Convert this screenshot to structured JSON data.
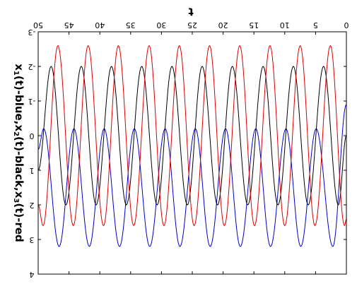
{
  "chart_data": {
    "type": "line",
    "orientation_note": "",
    "xlabel": "t",
    "ylabel": {
      "prefix": "x",
      "s1": "1",
      "mid1": "(t)-blue,x",
      "s2": "2",
      "mid2": "(t)-black,x",
      "s3": "3",
      "suffix": "(t)-red"
    },
    "xlim": [
      0,
      50
    ],
    "ylim": [
      -3,
      4
    ],
    "x_ticks": [
      0,
      5,
      10,
      15,
      20,
      25,
      30,
      35,
      40,
      45,
      50
    ],
    "x_tick_labels": [
      "0",
      "5",
      "10",
      "15",
      "20",
      "25",
      "30",
      "35",
      "40",
      "45",
      "50"
    ],
    "y_ticks": [
      -3,
      -2,
      -1,
      0,
      1,
      2,
      3,
      4
    ],
    "y_tick_labels": [
      "-3",
      "-2",
      "-1",
      "0",
      "1",
      "2",
      "3",
      "4"
    ],
    "grid": false,
    "legend": "none",
    "series": [
      {
        "color": "#0000cc",
        "x": [
          0,
          2.2,
          4.9,
          7.4,
          9.8,
          12.3,
          14.7,
          17.2,
          19.6,
          22.1,
          24.5,
          27.0,
          29.4,
          31.9,
          34.4,
          36.8,
          39.3,
          41.7,
          44.2,
          46.6,
          49.1,
          50
        ],
        "y": [
          -0.9,
          3.2,
          -0.2,
          3.2,
          -0.2,
          3.2,
          -0.2,
          3.2,
          -0.2,
          3.2,
          -0.2,
          3.2,
          -0.2,
          3.2,
          -0.2,
          3.2,
          -0.2,
          3.2,
          -0.2,
          3.2,
          -0.2,
          0.4
        ]
      },
      {
        "color": "#000000",
        "x": [
          0,
          1.3,
          3.7,
          6.2,
          8.6,
          11.1,
          13.5,
          16.0,
          18.5,
          20.9,
          23.4,
          25.8,
          28.3,
          30.7,
          33.2,
          35.7,
          38.1,
          40.6,
          43.0,
          45.5,
          47.9,
          50
        ],
        "y": [
          0,
          2.0,
          -2.0,
          2.0,
          -2.0,
          2.0,
          -2.0,
          2.0,
          -2.0,
          2.0,
          -2.0,
          2.0,
          -2.0,
          2.0,
          -2.0,
          2.0,
          -2.0,
          2.0,
          -2.0,
          2.0,
          -2.0,
          1.0
        ]
      },
      {
        "color": "#dd0000",
        "x": [
          0,
          0.3,
          2.6,
          5.1,
          7.5,
          10.0,
          12.4,
          14.9,
          17.3,
          19.8,
          22.2,
          24.7,
          27.1,
          29.6,
          32.0,
          34.5,
          37.0,
          39.4,
          41.9,
          44.3,
          46.8,
          49.2,
          50
        ],
        "y": [
          2.4,
          2.6,
          -2.6,
          2.6,
          -2.6,
          2.6,
          -2.6,
          2.6,
          -2.6,
          2.6,
          -2.6,
          2.6,
          -2.6,
          2.6,
          -2.6,
          2.6,
          -2.6,
          2.6,
          -2.6,
          2.6,
          -2.6,
          2.6,
          2.0
        ]
      }
    ]
  }
}
